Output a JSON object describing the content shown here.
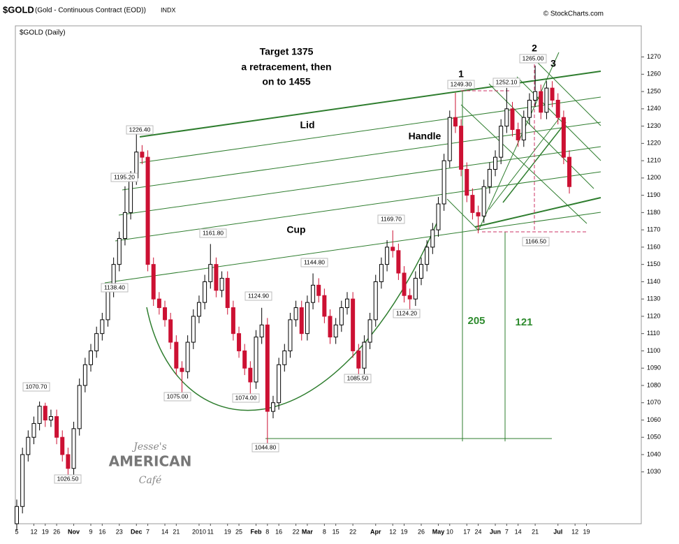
{
  "header": {
    "symbol": "$GOLD",
    "name": "(Gold - Continuous Contract (EOD))",
    "exchange": "INDX",
    "source": "© StockCharts.com"
  },
  "logo": [
    "Jesse's",
    "AMERICAN",
    "Café"
  ],
  "chart_data": {
    "type": "candlestick",
    "title": "$GOLD (Daily)",
    "up_color": "#000000",
    "down_color": "#cc1133",
    "grid": false,
    "categories": [
      "5",
      null,
      null,
      "12",
      null,
      "19",
      null,
      "26",
      null,
      null,
      "Nov",
      null,
      null,
      "9",
      null,
      "16",
      null,
      null,
      "23",
      null,
      null,
      "Dec",
      null,
      "7",
      null,
      null,
      "14",
      null,
      "21",
      null,
      null,
      null,
      "2010",
      null,
      "11",
      null,
      null,
      "19",
      null,
      "25",
      null,
      null,
      "Feb",
      null,
      "8",
      null,
      "16",
      null,
      null,
      "22",
      null,
      "Mar",
      null,
      null,
      "8",
      null,
      "15",
      null,
      null,
      "22",
      null,
      null,
      null,
      "Apr",
      null,
      null,
      "12",
      null,
      "19",
      null,
      null,
      "26",
      null,
      null,
      "May",
      null,
      "10",
      null,
      null,
      "17",
      null,
      "24",
      null,
      null,
      "Jun",
      null,
      "7",
      null,
      "14",
      null,
      null,
      "21",
      null,
      null,
      null,
      "Jul",
      null,
      null,
      "12",
      null,
      "19"
    ],
    "open": [
      1000,
      1010,
      1040,
      1050,
      1058,
      1068,
      1060,
      1062,
      1050,
      1040,
      1032,
      1055,
      1080,
      1092,
      1100,
      1110,
      1118,
      1135,
      1150,
      1165,
      1180,
      1200,
      1215,
      1212,
      1150,
      1130,
      1125,
      1118,
      1105,
      1090,
      1088,
      1105,
      1120,
      1128,
      1140,
      1150,
      1135,
      1142,
      1125,
      1110,
      1100,
      1090,
      1082,
      1108,
      1115,
      1065,
      1070,
      1092,
      1100,
      1118,
      1125,
      1110,
      1128,
      1138,
      1132,
      1120,
      1108,
      1115,
      1125,
      1130,
      1100,
      1090,
      1105,
      1118,
      1140,
      1150,
      1160,
      1158,
      1145,
      1132,
      1130,
      1142,
      1150,
      1160,
      1170,
      1185,
      1210,
      1235,
      1230,
      1205,
      1190,
      1180,
      1178,
      1195,
      1205,
      1212,
      1230,
      1240,
      1228,
      1222,
      1235,
      1245,
      1250,
      1238,
      1252,
      1245,
      1235,
      1212,
      null,
      null,
      null
    ],
    "high": [
      1014,
      1044,
      1054,
      1062,
      1070.7,
      1070,
      1066,
      1066,
      1054,
      1044,
      1059,
      1084,
      1096,
      1104,
      1114,
      1122,
      1139,
      1154,
      1169,
      1195.2,
      1204,
      1226.4,
      1219,
      1216,
      1154,
      1134,
      1129,
      1122,
      1109,
      1094,
      1109,
      1124,
      1132,
      1144,
      1161.8,
      1154,
      1146,
      1146,
      1129,
      1114,
      1104,
      1094,
      1112,
      1124.9,
      1119,
      1074,
      1096,
      1104,
      1122,
      1129,
      1129,
      1132,
      1144.8,
      1142,
      1136,
      1124,
      1119,
      1129,
      1134,
      1134,
      1104,
      1109,
      1122,
      1144,
      1154,
      1164,
      1169.7,
      1162,
      1149,
      1136,
      1146,
      1154,
      1164,
      1174,
      1189,
      1214,
      1239,
      1249.3,
      1234,
      1209,
      1194,
      1184,
      1199,
      1209,
      1216,
      1234,
      1252.1,
      1244,
      1232,
      1239,
      1249,
      1265,
      1254,
      1256,
      1256,
      1249,
      1239,
      1216,
      null,
      null,
      null
    ],
    "low": [
      996,
      1006,
      1036,
      1046,
      1054,
      1056,
      1056,
      1046,
      1036,
      1026.5,
      1028,
      1051,
      1076,
      1088,
      1096,
      1106,
      1114,
      1131,
      1146,
      1161,
      1176,
      1196,
      1208,
      1146,
      1126,
      1121,
      1114,
      1101,
      1086,
      1075,
      1084,
      1101,
      1116,
      1124,
      1136,
      1131,
      1131,
      1121,
      1106,
      1096,
      1086,
      1074,
      1078,
      1104,
      1044.8,
      1061,
      1066,
      1088,
      1096,
      1114,
      1106,
      1106,
      1124,
      1128,
      1116,
      1104,
      1104,
      1111,
      1121,
      1096,
      1085.5,
      1086,
      1101,
      1114,
      1136,
      1146,
      1154,
      1141,
      1128,
      1124.2,
      1126,
      1138,
      1146,
      1156,
      1166,
      1181,
      1206,
      1226,
      1201,
      1186,
      1176,
      1168,
      1174,
      1191,
      1201,
      1208,
      1226,
      1224,
      1218,
      1218,
      1231,
      1241,
      1234,
      1234,
      1241,
      1231,
      1208,
      1191,
      null,
      null,
      null
    ],
    "close": [
      1010,
      1040,
      1050,
      1058,
      1068,
      1060,
      1062,
      1050,
      1040,
      1032,
      1055,
      1080,
      1092,
      1100,
      1110,
      1118,
      1135,
      1150,
      1165,
      1180,
      1200,
      1215,
      1212,
      1150,
      1130,
      1125,
      1118,
      1105,
      1090,
      1088,
      1105,
      1120,
      1128,
      1140,
      1150,
      1135,
      1142,
      1125,
      1110,
      1100,
      1090,
      1082,
      1108,
      1115,
      1065,
      1070,
      1092,
      1100,
      1118,
      1125,
      1110,
      1128,
      1138,
      1132,
      1120,
      1108,
      1115,
      1125,
      1130,
      1100,
      1090,
      1105,
      1118,
      1140,
      1150,
      1160,
      1158,
      1145,
      1132,
      1130,
      1142,
      1150,
      1160,
      1170,
      1185,
      1210,
      1235,
      1230,
      1205,
      1190,
      1180,
      1178,
      1195,
      1205,
      1212,
      1230,
      1240,
      1228,
      1222,
      1235,
      1245,
      1250,
      1238,
      1252,
      1245,
      1235,
      1212,
      1195,
      null,
      null,
      null
    ],
    "ylim": [
      1000,
      1288
    ],
    "yticks": [
      1030,
      1040,
      1050,
      1060,
      1070,
      1080,
      1090,
      1100,
      1110,
      1120,
      1130,
      1140,
      1150,
      1160,
      1170,
      1180,
      1190,
      1200,
      1210,
      1220,
      1230,
      1240,
      1250,
      1260,
      1270
    ],
    "annotations": [
      "Target 1375",
      "a retracement, then",
      "on  to 1455",
      "Lid",
      "Handle",
      "Cup",
      "1",
      "2",
      "3",
      "205",
      "121",
      "1226.40",
      "1195.20",
      "1138.40",
      "1070.70",
      "1026.50",
      "1075.00",
      "1161.80",
      "1124.90",
      "1074.00",
      "1044.80",
      "1144.80",
      "1085.50",
      "1169.70",
      "1124.20",
      "1249.30",
      "1252.10",
      "1265.00",
      "1166.50"
    ]
  }
}
